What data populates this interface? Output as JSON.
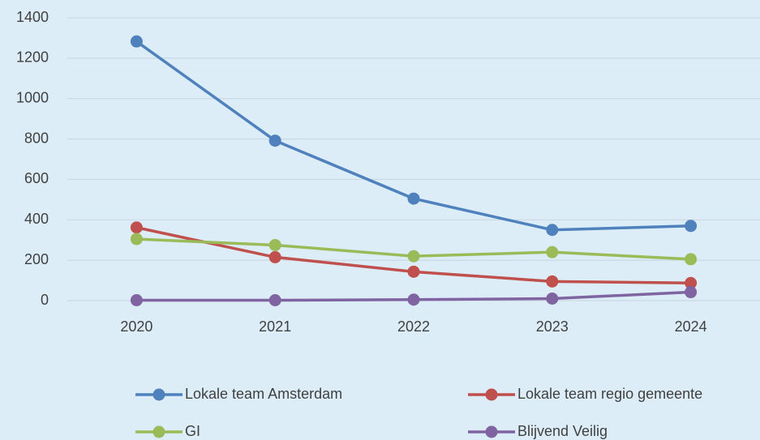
{
  "chart_data": {
    "type": "line",
    "categories": [
      "2020",
      "2021",
      "2022",
      "2023",
      "2024"
    ],
    "series": [
      {
        "name": "Lokale team Amsterdam",
        "color": "#4f81bd",
        "values": [
          1283,
          792,
          505,
          350,
          370
        ]
      },
      {
        "name": "Lokale team regio gemeente",
        "color": "#c0504d",
        "values": [
          362,
          215,
          143,
          95,
          87
        ]
      },
      {
        "name": "GI",
        "color": "#9bbb59",
        "values": [
          305,
          275,
          220,
          240,
          205
        ]
      },
      {
        "name": "Blijvend Veilig",
        "color": "#8064a2",
        "values": [
          2,
          2,
          5,
          10,
          42
        ]
      }
    ],
    "ylim": [
      0,
      1400
    ],
    "yticks": [
      0,
      200,
      400,
      600,
      800,
      1000,
      1200,
      1400
    ],
    "grid": true,
    "legend": "bottom"
  }
}
